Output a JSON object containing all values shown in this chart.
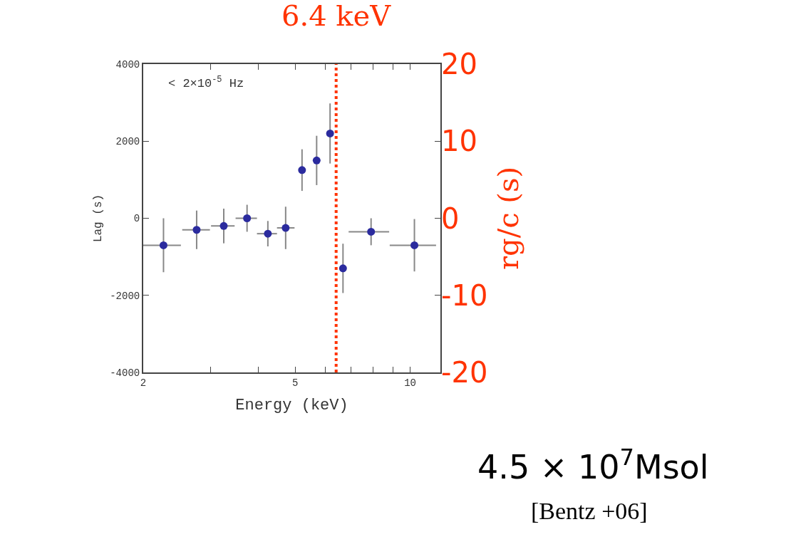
{
  "chart_data": {
    "type": "scatter",
    "xlabel": "Energy (keV)",
    "ylabel": "Lag (s)",
    "y2label": "rg/c (s)",
    "x": [
      2.26,
      2.76,
      3.25,
      3.74,
      4.24,
      4.72,
      5.21,
      5.69,
      6.17,
      6.67,
      7.9,
      10.26
    ],
    "series": [
      {
        "color": "#2b2b9e",
        "values": [
          -700,
          -300,
          -200,
          0,
          -400,
          -250,
          1250,
          1500,
          2200,
          -1300,
          -350,
          -700
        ],
        "errors": [
          700,
          500,
          450,
          350,
          330,
          550,
          540,
          640,
          780,
          640,
          350,
          680
        ],
        "xerrors": [
          [
            2.0,
            2.51
          ],
          [
            2.53,
            2.99
          ],
          [
            3.01,
            3.47
          ],
          [
            3.49,
            3.97
          ],
          [
            3.97,
            4.48
          ],
          [
            4.48,
            4.98
          ],
          null,
          null,
          null,
          null,
          [
            6.9,
            8.81
          ],
          [
            8.84,
            11.69
          ]
        ]
      }
    ],
    "log": "x",
    "xlim": [
      2,
      12
    ],
    "xticks": [
      2,
      {
        "value": 3,
        "label": null
      },
      {
        "value": 4,
        "label": null
      },
      5,
      {
        "value": 6,
        "label": null
      },
      {
        "value": 7,
        "label": null
      },
      {
        "value": 8,
        "label": null
      },
      {
        "value": 9,
        "label": null
      },
      10
    ],
    "ylim": [
      -4000,
      4000
    ],
    "yticks": [
      -4000,
      -2000,
      0,
      2000,
      4000
    ],
    "y2lim": [
      -20,
      20
    ],
    "y2ticks": [
      -20,
      -10,
      0,
      10,
      20
    ],
    "ref_lines": [
      {
        "axis": "x",
        "value": 6.4,
        "label": "6.4 keV",
        "color": "#ff3300",
        "line_style": "dotted"
      }
    ],
    "marker": "circle",
    "annotations": [
      "< 2×10$^{-5}$ Hz",
      "4.5 × 10$^{7}$Msol",
      "[Bentz +06]"
    ]
  }
}
